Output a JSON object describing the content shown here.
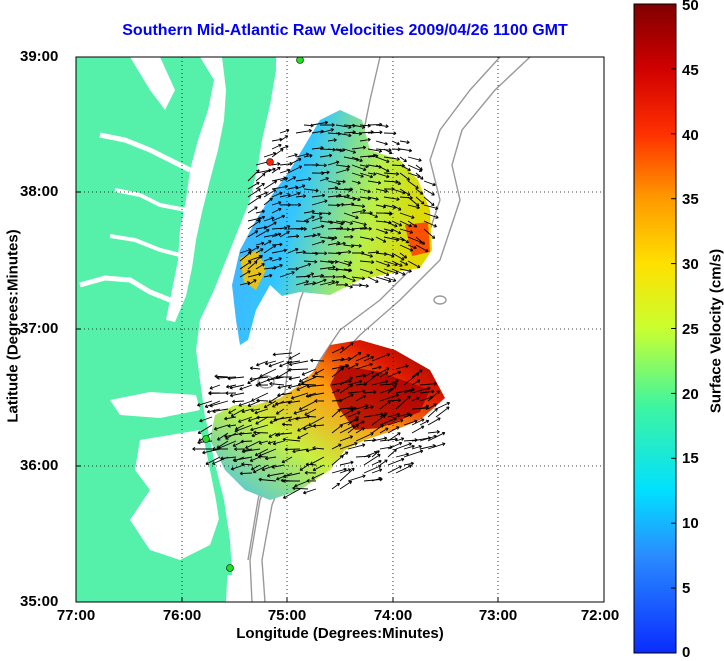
{
  "title": "Southern Mid-Atlantic Raw Velocities 2009/04/26 1100 GMT",
  "xaxis": {
    "label": "Longitude (Degrees:Minutes)",
    "ticks": [
      "77:00",
      "76:00",
      "75:00",
      "74:00",
      "73:00",
      "72:00"
    ]
  },
  "yaxis": {
    "label": "Latitude (Degrees:Minutes)",
    "ticks": [
      "39:00",
      "38:00",
      "37:00",
      "36:00",
      "35:00"
    ]
  },
  "colorbar": {
    "label": "Surface Velocity (cm/s)",
    "ticks": [
      "50",
      "45",
      "40",
      "35",
      "30",
      "25",
      "20",
      "15",
      "10",
      "5",
      "0"
    ],
    "range": [
      0,
      50
    ]
  },
  "colors": {
    "land": "#55f0aa",
    "water": "#ffffff",
    "title": "#0000ff",
    "bathymetry": "#999999"
  },
  "map": {
    "lon_range": [
      -77,
      -72
    ],
    "lat_range": [
      35,
      39
    ],
    "stations": [
      "green",
      "red",
      "green",
      "green"
    ]
  }
}
